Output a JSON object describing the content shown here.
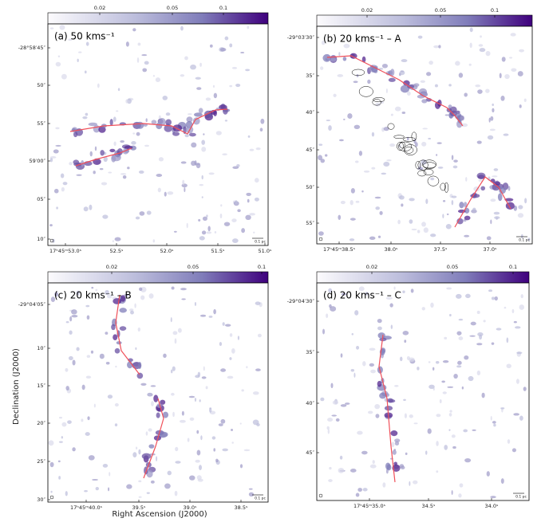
{
  "panels": [
    {
      "label": "(a) 50 kms⁻¹",
      "colorbar_ticks": [
        "0.02",
        "0.05",
        "0.1"
      ],
      "y_ticks": [
        "-28°58′45″",
        "50″",
        "55″",
        "59′00″",
        "05″",
        "10″"
      ],
      "x_ticks": [
        "17ʰ45ᵐ53.0ˢ",
        "52.5ˢ",
        "52.0ˢ",
        "51.5ˢ",
        "51.0ˢ"
      ],
      "scale_bar": "0.1 pc"
    },
    {
      "label": "(b) 20 kms⁻¹ – A",
      "colorbar_ticks": [
        "0.02",
        "0.05",
        "0.1"
      ],
      "y_ticks": [
        "-29°03′30″",
        "35″",
        "40″",
        "45″",
        "50″",
        "55″"
      ],
      "x_ticks": [
        "17ʰ45ᵐ38.5ˢ",
        "38.0ˢ",
        "37.5ˢ",
        "37.0ˢ"
      ],
      "scale_bar": "0.1 pc"
    },
    {
      "label": "(c) 20 kms⁻¹ – B",
      "colorbar_ticks": [
        "0.02",
        "0.05",
        "0.1"
      ],
      "y_ticks": [
        "-29°04′05″",
        "10″",
        "15″",
        "20″",
        "25″",
        "30″"
      ],
      "x_ticks": [
        "17ʰ45ᵐ40.0ˢ",
        "39.5ˢ",
        "39.0ˢ",
        "38.5ˢ"
      ],
      "scale_bar": "0.1 pc"
    },
    {
      "label": "(d) 20 kms⁻¹ – C",
      "colorbar_ticks": [
        "0.02",
        "0.05",
        "0.1"
      ],
      "y_ticks": [
        "-29°04′30″",
        "35″",
        "40″",
        "45″"
      ],
      "x_ticks": [
        "17ʰ45ᵐ35.0ˢ",
        "34.5ˢ",
        "34.0ˢ"
      ],
      "scale_bar": "0.1 pc"
    }
  ],
  "axes": {
    "y_label": "Declination (J2000)",
    "x_label": "Right Ascension (J2000)"
  }
}
